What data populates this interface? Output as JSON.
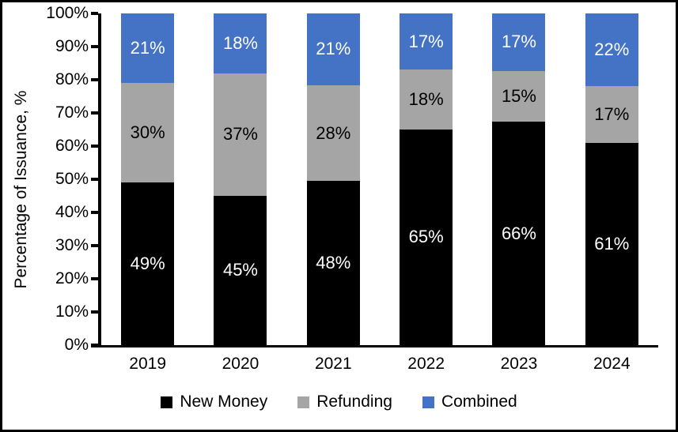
{
  "chart_data": {
    "type": "bar",
    "stacked": true,
    "normalized_to_100": true,
    "title": "",
    "xlabel": "",
    "ylabel": "Percentage of Issuance, %",
    "ylim": [
      0,
      100
    ],
    "grid": false,
    "legend_position": "bottom",
    "categories": [
      "2019",
      "2020",
      "2021",
      "2022",
      "2023",
      "2024"
    ],
    "series": [
      {
        "name": "New Money",
        "color": "#000000",
        "label_color": "#ffffff",
        "values": [
          49,
          45,
          48,
          65,
          66,
          61
        ]
      },
      {
        "name": "Refunding",
        "color": "#A5A5A5",
        "label_color": "#000000",
        "values": [
          30,
          37,
          28,
          18,
          15,
          17
        ]
      },
      {
        "name": "Combined",
        "color": "#4472C4",
        "label_color": "#ffffff",
        "values": [
          21,
          18,
          21,
          17,
          17,
          22
        ]
      }
    ],
    "y_ticks": [
      "0%",
      "10%",
      "20%",
      "30%",
      "40%",
      "50%",
      "60%",
      "70%",
      "80%",
      "90%",
      "100%"
    ],
    "data_label_suffix": "%"
  },
  "colors": {
    "axis": "#000000",
    "background": "#ffffff",
    "border": "#000000"
  }
}
